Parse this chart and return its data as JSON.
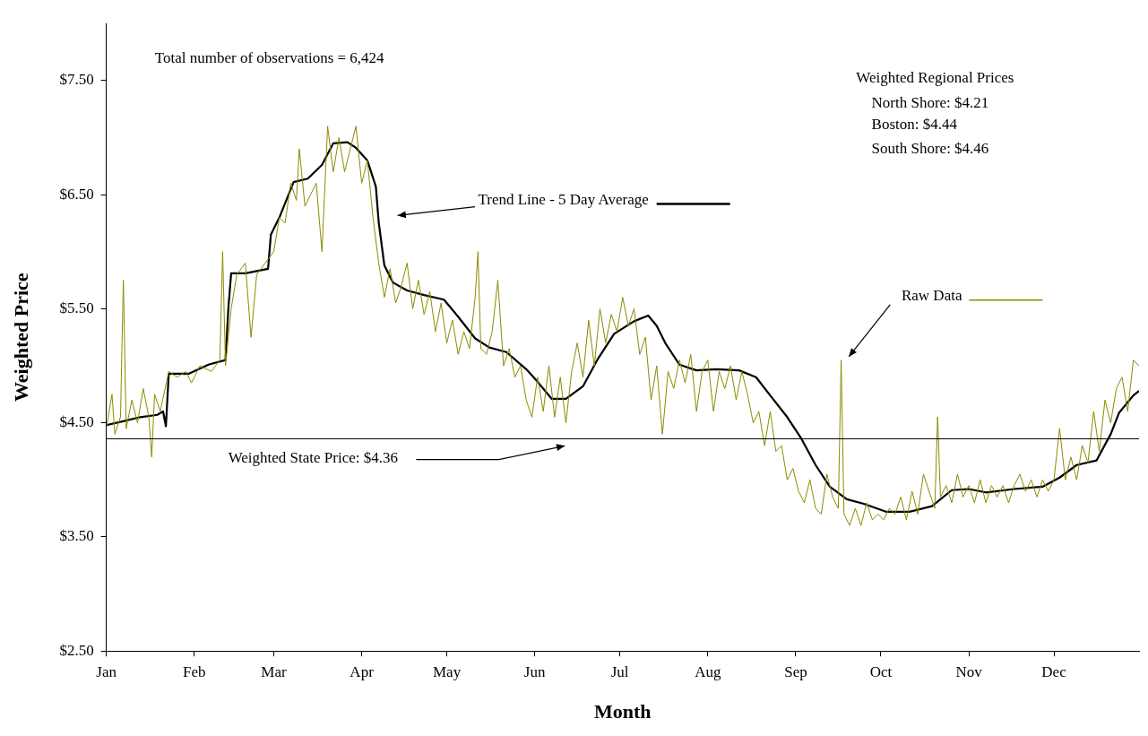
{
  "chart_data": {
    "type": "line",
    "xlabel": "Month",
    "ylabel": "Weighted Price",
    "xlim": [
      "--01-01",
      "--12-31"
    ],
    "xticks": [
      {
        "value": "--01-01",
        "label": "Jan"
      },
      {
        "value": "--02-01",
        "label": "Feb"
      },
      {
        "value": "--03-01",
        "label": "Mar"
      },
      {
        "value": "--04-01",
        "label": "Apr"
      },
      {
        "value": "--05-01",
        "label": "May"
      },
      {
        "value": "--06-01",
        "label": "Jun"
      },
      {
        "value": "--07-01",
        "label": "Jul"
      },
      {
        "value": "--08-01",
        "label": "Aug"
      },
      {
        "value": "--09-01",
        "label": "Sep"
      },
      {
        "value": "--10-01",
        "label": "Oct"
      },
      {
        "value": "--11-01",
        "label": "Nov"
      },
      {
        "value": "--12-01",
        "label": "Dec"
      }
    ],
    "ylim": [
      2.5,
      8.0
    ],
    "yticks": [
      {
        "value": 2.5,
        "label": "$2.50"
      },
      {
        "value": 3.5,
        "label": "$3.50"
      },
      {
        "value": 4.5,
        "label": "$4.50"
      },
      {
        "value": 5.5,
        "label": "$5.50"
      },
      {
        "value": 6.5,
        "label": "$6.50"
      },
      {
        "value": 7.5,
        "label": "$7.50"
      }
    ],
    "grid": false,
    "marker": "none",
    "line_style": "solid",
    "legend": "top right",
    "series": [
      {
        "name": "Raw Data",
        "color": "#8b8b00",
        "x": [
          "--01-01",
          "--01-03",
          "--01-04",
          "--01-06",
          "--01-07",
          "--01-08",
          "--01-10",
          "--01-12",
          "--01-14",
          "--01-16",
          "--01-17",
          "--01-18",
          "--01-20",
          "--01-23",
          "--01-26",
          "--01-29",
          "--01-31",
          "--02-03",
          "--02-07",
          "--02-10",
          "--02-11",
          "--02-12",
          "--02-14",
          "--02-16",
          "--02-19",
          "--02-21",
          "--02-23",
          "--02-26",
          "--03-01",
          "--03-03",
          "--03-05",
          "--03-07",
          "--03-09",
          "--03-10",
          "--03-12",
          "--03-14",
          "--03-16",
          "--03-18",
          "--03-20",
          "--03-22",
          "--03-24",
          "--03-26",
          "--03-28",
          "--03-30",
          "--04-01",
          "--04-03",
          "--04-05",
          "--04-07",
          "--04-09",
          "--04-11",
          "--04-13",
          "--04-15",
          "--04-17",
          "--04-19",
          "--04-21",
          "--04-23",
          "--04-25",
          "--04-27",
          "--04-29",
          "--05-01",
          "--05-03",
          "--05-05",
          "--05-07",
          "--05-09",
          "--05-11",
          "--05-12",
          "--05-13",
          "--05-15",
          "--05-17",
          "--05-19",
          "--05-21",
          "--05-23",
          "--05-25",
          "--05-27",
          "--05-29",
          "--05-31",
          "--06-02",
          "--06-04",
          "--06-06",
          "--06-08",
          "--06-10",
          "--06-12",
          "--06-14",
          "--06-16",
          "--06-18",
          "--06-20",
          "--06-22",
          "--06-24",
          "--06-26",
          "--06-28",
          "--06-30",
          "--07-02",
          "--07-04",
          "--07-06",
          "--07-08",
          "--07-10",
          "--07-12",
          "--07-14",
          "--07-16",
          "--07-18",
          "--07-20",
          "--07-22",
          "--07-24",
          "--07-26",
          "--07-28",
          "--07-30",
          "--08-01",
          "--08-03",
          "--08-05",
          "--08-07",
          "--08-09",
          "--08-11",
          "--08-13",
          "--08-15",
          "--08-17",
          "--08-19",
          "--08-21",
          "--08-23",
          "--08-25",
          "--08-27",
          "--08-29",
          "--08-31",
          "--09-02",
          "--09-04",
          "--09-06",
          "--09-08",
          "--09-10",
          "--09-12",
          "--09-14",
          "--09-16",
          "--09-17",
          "--09-18",
          "--09-20",
          "--09-22",
          "--09-24",
          "--09-26",
          "--09-28",
          "--09-30",
          "--10-02",
          "--10-04",
          "--10-06",
          "--10-08",
          "--10-10",
          "--10-12",
          "--10-14",
          "--10-16",
          "--10-18",
          "--10-20",
          "--10-21",
          "--10-22",
          "--10-24",
          "--10-26",
          "--10-28",
          "--10-30",
          "--11-01",
          "--11-03",
          "--11-05",
          "--11-07",
          "--11-09",
          "--11-11",
          "--11-13",
          "--11-15",
          "--11-17",
          "--11-19",
          "--11-21",
          "--11-23",
          "--11-25",
          "--11-27",
          "--11-29",
          "--12-01",
          "--12-03",
          "--12-05",
          "--12-07",
          "--12-09",
          "--12-11",
          "--12-13",
          "--12-15",
          "--12-17",
          "--12-19",
          "--12-21",
          "--12-23",
          "--12-25",
          "--12-27",
          "--12-29",
          "--12-31"
        ],
        "values": [
          4.45,
          4.75,
          4.4,
          4.55,
          5.75,
          4.45,
          4.7,
          4.5,
          4.8,
          4.55,
          4.2,
          4.75,
          4.6,
          4.95,
          4.9,
          4.95,
          4.85,
          5.0,
          4.95,
          5.05,
          6.0,
          5.0,
          5.5,
          5.8,
          5.9,
          5.25,
          5.8,
          5.9,
          6.0,
          6.3,
          6.25,
          6.6,
          6.45,
          6.9,
          6.4,
          6.5,
          6.6,
          6.0,
          7.1,
          6.7,
          7.0,
          6.7,
          6.9,
          7.1,
          6.6,
          6.8,
          6.3,
          5.9,
          5.6,
          5.85,
          5.55,
          5.7,
          5.9,
          5.5,
          5.75,
          5.45,
          5.65,
          5.3,
          5.55,
          5.2,
          5.4,
          5.1,
          5.3,
          5.15,
          5.6,
          6.0,
          5.15,
          5.1,
          5.3,
          5.75,
          5.0,
          5.15,
          4.9,
          5.0,
          4.7,
          4.55,
          4.9,
          4.6,
          5.0,
          4.55,
          4.9,
          4.5,
          4.95,
          5.2,
          4.9,
          5.4,
          5.0,
          5.5,
          5.2,
          5.45,
          5.3,
          5.6,
          5.35,
          5.5,
          5.1,
          5.25,
          4.7,
          5.0,
          4.4,
          4.95,
          4.8,
          5.05,
          4.85,
          5.1,
          4.6,
          4.95,
          5.05,
          4.6,
          4.95,
          4.8,
          5.0,
          4.7,
          4.95,
          4.75,
          4.5,
          4.6,
          4.3,
          4.6,
          4.25,
          4.3,
          4.0,
          4.1,
          3.9,
          3.8,
          4.0,
          3.75,
          3.7,
          4.05,
          3.85,
          3.75,
          5.05,
          3.7,
          3.6,
          3.75,
          3.6,
          3.8,
          3.65,
          3.7,
          3.65,
          3.75,
          3.7,
          3.85,
          3.65,
          3.9,
          3.7,
          4.05,
          3.9,
          3.75,
          4.55,
          3.85,
          3.95,
          3.8,
          4.05,
          3.85,
          3.95,
          3.8,
          4.0,
          3.8,
          3.95,
          3.85,
          3.95,
          3.8,
          3.95,
          4.05,
          3.9,
          4.0,
          3.85,
          4.0,
          3.9,
          4.0,
          4.45,
          4.0,
          4.2,
          4.0,
          4.3,
          4.15,
          4.6,
          4.25,
          4.7,
          4.5,
          4.8,
          4.9,
          4.6,
          5.05,
          5.0
        ]
      },
      {
        "name": "Trend Line - 5 Day Average",
        "color": "#000000",
        "x": [
          "--01-01",
          "--01-08",
          "--01-13",
          "--01-19",
          "--01-21",
          "--01-22",
          "--01-23",
          "--01-30",
          "--02-06",
          "--02-12",
          "--02-13",
          "--02-14",
          "--02-19",
          "--02-27",
          "--02-28",
          "--03-03",
          "--03-08",
          "--03-13",
          "--03-18",
          "--03-22",
          "--03-27",
          "--03-30",
          "--04-03",
          "--04-06",
          "--04-07",
          "--04-09",
          "--04-12",
          "--04-17",
          "--04-23",
          "--04-30",
          "--05-05",
          "--05-11",
          "--05-16",
          "--05-22",
          "--05-29",
          "--06-02",
          "--06-07",
          "--06-12",
          "--06-18",
          "--06-23",
          "--06-29",
          "--07-06",
          "--07-11",
          "--07-14",
          "--07-17",
          "--07-22",
          "--07-28",
          "--08-04",
          "--08-12",
          "--08-18",
          "--08-23",
          "--08-29",
          "--09-03",
          "--09-08",
          "--09-13",
          "--09-19",
          "--09-25",
          "--10-03",
          "--10-11",
          "--10-19",
          "--10-26",
          "--11-01",
          "--11-07",
          "--11-17",
          "--11-27",
          "--12-03",
          "--12-09",
          "--12-16",
          "--12-21",
          "--12-24",
          "--12-29",
          "--12-31"
        ],
        "values": [
          4.48,
          4.52,
          4.55,
          4.57,
          4.6,
          4.47,
          4.93,
          4.93,
          5.01,
          5.05,
          5.5,
          5.81,
          5.81,
          5.85,
          6.15,
          6.3,
          6.61,
          6.64,
          6.76,
          6.95,
          6.96,
          6.91,
          6.8,
          6.57,
          6.26,
          5.88,
          5.73,
          5.66,
          5.62,
          5.58,
          5.43,
          5.24,
          5.16,
          5.12,
          4.97,
          4.86,
          4.71,
          4.71,
          4.82,
          5.05,
          5.28,
          5.39,
          5.44,
          5.35,
          5.2,
          5.01,
          4.96,
          4.97,
          4.96,
          4.9,
          4.74,
          4.55,
          4.36,
          4.13,
          3.94,
          3.83,
          3.79,
          3.72,
          3.72,
          3.77,
          3.91,
          3.92,
          3.89,
          3.92,
          3.94,
          4.02,
          4.13,
          4.17,
          4.4,
          4.59,
          4.74,
          4.78
        ]
      }
    ],
    "ref_lines": [
      {
        "axis": "y",
        "value": 4.36,
        "label": "Weighted State Price: $4.36",
        "color": "#000000"
      }
    ],
    "annotations": [
      "Total number of observations = 6,424",
      "Weighted Regional Prices",
      "North Shore: $4.21",
      "Boston: $4.44",
      "South Shore: $4.46"
    ]
  }
}
